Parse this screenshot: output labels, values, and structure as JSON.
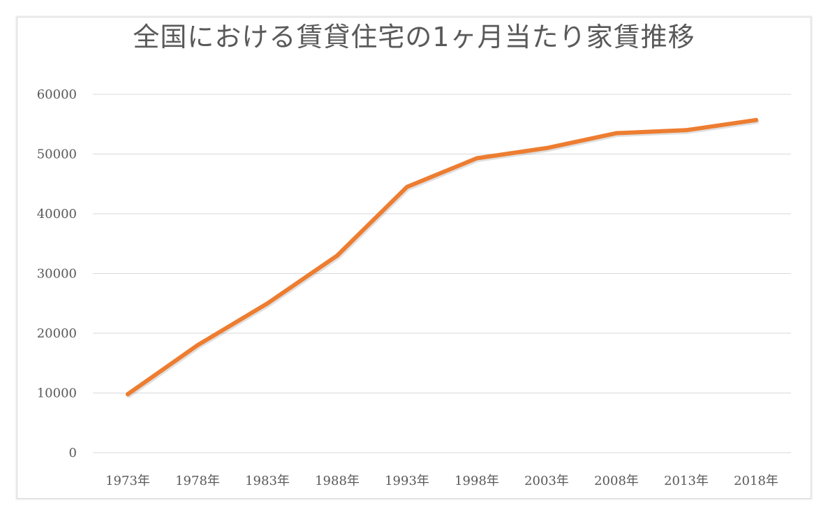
{
  "chart_data": {
    "type": "line",
    "title": "全国における賃貸住宅の1ヶ月当たり家賃推移",
    "categories": [
      "1973年",
      "1978年",
      "1983年",
      "1988年",
      "1993年",
      "1998年",
      "2003年",
      "2008年",
      "2013年",
      "2018年"
    ],
    "series": [
      {
        "values": [
          9800,
          18000,
          25000,
          33000,
          44500,
          49300,
          51000,
          53500,
          54000,
          55700
        ],
        "color": "#ED7D31"
      }
    ],
    "yticks": [
      "0",
      "10000",
      "20000",
      "30000",
      "40000",
      "50000",
      "60000"
    ],
    "ylim": [
      0,
      60000
    ],
    "grid": true,
    "legend": "none"
  }
}
